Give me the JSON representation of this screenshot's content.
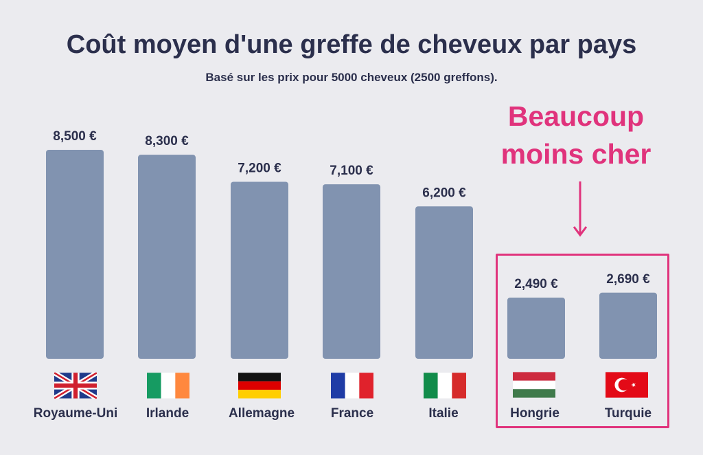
{
  "chart_data": {
    "type": "bar",
    "title": "Coût moyen d'une greffe de cheveux par pays",
    "subtitle": "Basé sur les prix pour 5000 cheveux (2500 greffons).",
    "categories": [
      "Royaume-Uni",
      "Irlande",
      "Allemagne",
      "France",
      "Italie",
      "Hongrie",
      "Turquie"
    ],
    "values": [
      8500,
      8300,
      7200,
      7100,
      6200,
      2490,
      2690
    ],
    "value_labels": [
      "8,500 €",
      "8,300 €",
      "7,200 €",
      "7,100 €",
      "6,200 €",
      "2,490 €",
      "2,690 €"
    ],
    "ylim": [
      0,
      8500
    ],
    "xlabel": "",
    "ylabel": "",
    "grid": false,
    "bar_color": "#8193b0",
    "highlight": {
      "categories": [
        "Hongrie",
        "Turquie"
      ],
      "annotation_line1": "Beaucoup",
      "annotation_line2": "moins cher",
      "color": "#e0337c"
    }
  },
  "flags": [
    "uk-flag-icon",
    "ireland-flag-icon",
    "germany-flag-icon",
    "france-flag-icon",
    "italy-flag-icon",
    "hungary-flag-icon",
    "turkey-flag-icon"
  ],
  "colors": {
    "background": "#ebebef",
    "text": "#2b2f4c",
    "bar": "#8193b0",
    "accent": "#e0337c"
  }
}
